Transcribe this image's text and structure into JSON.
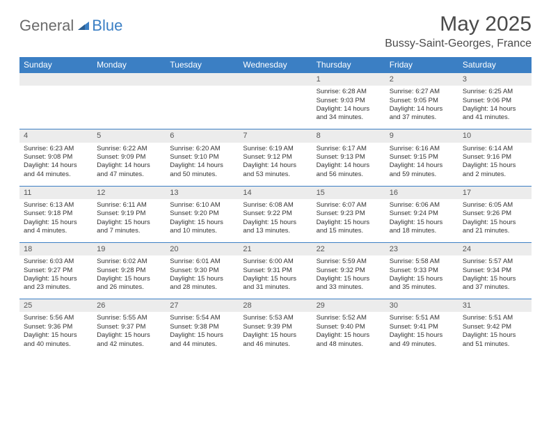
{
  "logo": {
    "text_general": "General",
    "text_blue": "Blue"
  },
  "title": "May 2025",
  "location": "Bussy-Saint-Georges, France",
  "colors": {
    "header_bg": "#3b7fc4",
    "header_text": "#ffffff",
    "daynum_bg": "#ececec",
    "row_border": "#3b7fc4",
    "logo_gray": "#6b6b6b",
    "logo_blue": "#3b7fc4"
  },
  "weekdays": [
    "Sunday",
    "Monday",
    "Tuesday",
    "Wednesday",
    "Thursday",
    "Friday",
    "Saturday"
  ],
  "weeks": [
    [
      null,
      null,
      null,
      null,
      {
        "n": "1",
        "sr": "Sunrise: 6:28 AM",
        "ss": "Sunset: 9:03 PM",
        "dl": "Daylight: 14 hours and 34 minutes."
      },
      {
        "n": "2",
        "sr": "Sunrise: 6:27 AM",
        "ss": "Sunset: 9:05 PM",
        "dl": "Daylight: 14 hours and 37 minutes."
      },
      {
        "n": "3",
        "sr": "Sunrise: 6:25 AM",
        "ss": "Sunset: 9:06 PM",
        "dl": "Daylight: 14 hours and 41 minutes."
      }
    ],
    [
      {
        "n": "4",
        "sr": "Sunrise: 6:23 AM",
        "ss": "Sunset: 9:08 PM",
        "dl": "Daylight: 14 hours and 44 minutes."
      },
      {
        "n": "5",
        "sr": "Sunrise: 6:22 AM",
        "ss": "Sunset: 9:09 PM",
        "dl": "Daylight: 14 hours and 47 minutes."
      },
      {
        "n": "6",
        "sr": "Sunrise: 6:20 AM",
        "ss": "Sunset: 9:10 PM",
        "dl": "Daylight: 14 hours and 50 minutes."
      },
      {
        "n": "7",
        "sr": "Sunrise: 6:19 AM",
        "ss": "Sunset: 9:12 PM",
        "dl": "Daylight: 14 hours and 53 minutes."
      },
      {
        "n": "8",
        "sr": "Sunrise: 6:17 AM",
        "ss": "Sunset: 9:13 PM",
        "dl": "Daylight: 14 hours and 56 minutes."
      },
      {
        "n": "9",
        "sr": "Sunrise: 6:16 AM",
        "ss": "Sunset: 9:15 PM",
        "dl": "Daylight: 14 hours and 59 minutes."
      },
      {
        "n": "10",
        "sr": "Sunrise: 6:14 AM",
        "ss": "Sunset: 9:16 PM",
        "dl": "Daylight: 15 hours and 2 minutes."
      }
    ],
    [
      {
        "n": "11",
        "sr": "Sunrise: 6:13 AM",
        "ss": "Sunset: 9:18 PM",
        "dl": "Daylight: 15 hours and 4 minutes."
      },
      {
        "n": "12",
        "sr": "Sunrise: 6:11 AM",
        "ss": "Sunset: 9:19 PM",
        "dl": "Daylight: 15 hours and 7 minutes."
      },
      {
        "n": "13",
        "sr": "Sunrise: 6:10 AM",
        "ss": "Sunset: 9:20 PM",
        "dl": "Daylight: 15 hours and 10 minutes."
      },
      {
        "n": "14",
        "sr": "Sunrise: 6:08 AM",
        "ss": "Sunset: 9:22 PM",
        "dl": "Daylight: 15 hours and 13 minutes."
      },
      {
        "n": "15",
        "sr": "Sunrise: 6:07 AM",
        "ss": "Sunset: 9:23 PM",
        "dl": "Daylight: 15 hours and 15 minutes."
      },
      {
        "n": "16",
        "sr": "Sunrise: 6:06 AM",
        "ss": "Sunset: 9:24 PM",
        "dl": "Daylight: 15 hours and 18 minutes."
      },
      {
        "n": "17",
        "sr": "Sunrise: 6:05 AM",
        "ss": "Sunset: 9:26 PM",
        "dl": "Daylight: 15 hours and 21 minutes."
      }
    ],
    [
      {
        "n": "18",
        "sr": "Sunrise: 6:03 AM",
        "ss": "Sunset: 9:27 PM",
        "dl": "Daylight: 15 hours and 23 minutes."
      },
      {
        "n": "19",
        "sr": "Sunrise: 6:02 AM",
        "ss": "Sunset: 9:28 PM",
        "dl": "Daylight: 15 hours and 26 minutes."
      },
      {
        "n": "20",
        "sr": "Sunrise: 6:01 AM",
        "ss": "Sunset: 9:30 PM",
        "dl": "Daylight: 15 hours and 28 minutes."
      },
      {
        "n": "21",
        "sr": "Sunrise: 6:00 AM",
        "ss": "Sunset: 9:31 PM",
        "dl": "Daylight: 15 hours and 31 minutes."
      },
      {
        "n": "22",
        "sr": "Sunrise: 5:59 AM",
        "ss": "Sunset: 9:32 PM",
        "dl": "Daylight: 15 hours and 33 minutes."
      },
      {
        "n": "23",
        "sr": "Sunrise: 5:58 AM",
        "ss": "Sunset: 9:33 PM",
        "dl": "Daylight: 15 hours and 35 minutes."
      },
      {
        "n": "24",
        "sr": "Sunrise: 5:57 AM",
        "ss": "Sunset: 9:34 PM",
        "dl": "Daylight: 15 hours and 37 minutes."
      }
    ],
    [
      {
        "n": "25",
        "sr": "Sunrise: 5:56 AM",
        "ss": "Sunset: 9:36 PM",
        "dl": "Daylight: 15 hours and 40 minutes."
      },
      {
        "n": "26",
        "sr": "Sunrise: 5:55 AM",
        "ss": "Sunset: 9:37 PM",
        "dl": "Daylight: 15 hours and 42 minutes."
      },
      {
        "n": "27",
        "sr": "Sunrise: 5:54 AM",
        "ss": "Sunset: 9:38 PM",
        "dl": "Daylight: 15 hours and 44 minutes."
      },
      {
        "n": "28",
        "sr": "Sunrise: 5:53 AM",
        "ss": "Sunset: 9:39 PM",
        "dl": "Daylight: 15 hours and 46 minutes."
      },
      {
        "n": "29",
        "sr": "Sunrise: 5:52 AM",
        "ss": "Sunset: 9:40 PM",
        "dl": "Daylight: 15 hours and 48 minutes."
      },
      {
        "n": "30",
        "sr": "Sunrise: 5:51 AM",
        "ss": "Sunset: 9:41 PM",
        "dl": "Daylight: 15 hours and 49 minutes."
      },
      {
        "n": "31",
        "sr": "Sunrise: 5:51 AM",
        "ss": "Sunset: 9:42 PM",
        "dl": "Daylight: 15 hours and 51 minutes."
      }
    ]
  ]
}
